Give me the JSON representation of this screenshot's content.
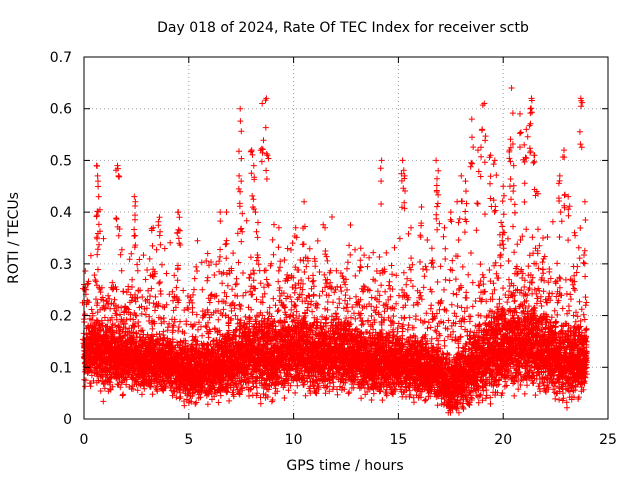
{
  "chart_data": {
    "type": "scatter",
    "title": "Day 018 of 2024, Rate Of TEC Index for receiver sctb",
    "xlabel": "GPS time / hours",
    "ylabel": "ROTI / TECUs",
    "xlim": [
      0,
      25
    ],
    "ylim": [
      0,
      0.7
    ],
    "x_ticks": [
      0,
      5,
      10,
      15,
      20,
      25
    ],
    "x_tick_labels": [
      "0",
      "5",
      "10",
      "15",
      "20",
      "25"
    ],
    "y_ticks": [
      0,
      0.1,
      0.2,
      0.3,
      0.4,
      0.5,
      0.6,
      0.7
    ],
    "y_tick_labels": [
      "0",
      "0.1",
      "0.2",
      "0.3",
      "0.4",
      "0.5",
      "0.6",
      "0.7"
    ],
    "grid": true,
    "marker": "+",
    "series_color": "#ff0000",
    "sample_interval_hours": 0.01,
    "observed_range_hours": [
      0,
      24
    ],
    "mean_envelope": [
      [
        0,
        0.11
      ],
      [
        0.5,
        0.14
      ],
      [
        1,
        0.12
      ],
      [
        2,
        0.12
      ],
      [
        3,
        0.11
      ],
      [
        4,
        0.11
      ],
      [
        5,
        0.09
      ],
      [
        6,
        0.1
      ],
      [
        7,
        0.11
      ],
      [
        8,
        0.13
      ],
      [
        9,
        0.12
      ],
      [
        10,
        0.14
      ],
      [
        11,
        0.12
      ],
      [
        12,
        0.13
      ],
      [
        13,
        0.12
      ],
      [
        14,
        0.11
      ],
      [
        15,
        0.11
      ],
      [
        16,
        0.1
      ],
      [
        17,
        0.09
      ],
      [
        17.5,
        0.06
      ],
      [
        18,
        0.08
      ],
      [
        19,
        0.12
      ],
      [
        20,
        0.14
      ],
      [
        21,
        0.15
      ],
      [
        22,
        0.13
      ],
      [
        23,
        0.11
      ],
      [
        24,
        0.12
      ]
    ],
    "spread_envelope": [
      [
        0,
        0.05
      ],
      [
        1,
        0.06
      ],
      [
        3,
        0.05
      ],
      [
        5,
        0.05
      ],
      [
        7,
        0.06
      ],
      [
        8,
        0.07
      ],
      [
        10,
        0.07
      ],
      [
        12,
        0.06
      ],
      [
        14,
        0.06
      ],
      [
        16,
        0.05
      ],
      [
        17.5,
        0.05
      ],
      [
        19,
        0.07
      ],
      [
        21,
        0.08
      ],
      [
        22,
        0.07
      ],
      [
        24,
        0.06
      ]
    ],
    "peaks": [
      [
        0.0,
        0.26
      ],
      [
        0.1,
        0.25
      ],
      [
        0.6,
        0.49
      ],
      [
        0.65,
        0.47
      ],
      [
        0.7,
        0.43
      ],
      [
        1.6,
        0.49
      ],
      [
        1.65,
        0.47
      ],
      [
        2.4,
        0.43
      ],
      [
        2.45,
        0.42
      ],
      [
        3.6,
        0.39
      ],
      [
        3.3,
        0.37
      ],
      [
        4.5,
        0.4
      ],
      [
        4.55,
        0.39
      ],
      [
        5.2,
        0.24
      ],
      [
        5.9,
        0.32
      ],
      [
        6.5,
        0.4
      ],
      [
        6.8,
        0.4
      ],
      [
        7.4,
        0.47
      ],
      [
        7.5,
        0.46
      ],
      [
        7.45,
        0.6
      ],
      [
        8.0,
        0.52
      ],
      [
        8.3,
        0.38
      ],
      [
        8.5,
        0.61
      ],
      [
        8.7,
        0.62
      ],
      [
        8.75,
        0.51
      ],
      [
        8.1,
        0.49
      ],
      [
        9.3,
        0.37
      ],
      [
        10.1,
        0.37
      ],
      [
        10.5,
        0.42
      ],
      [
        11.0,
        0.31
      ],
      [
        11.5,
        0.37
      ],
      [
        12.0,
        0.25
      ],
      [
        12.5,
        0.27
      ],
      [
        13.2,
        0.33
      ],
      [
        13.8,
        0.27
      ],
      [
        14.2,
        0.5
      ],
      [
        14.7,
        0.28
      ],
      [
        15.2,
        0.5
      ],
      [
        15.3,
        0.47
      ],
      [
        15.6,
        0.37
      ],
      [
        16.1,
        0.41
      ],
      [
        16.6,
        0.33
      ],
      [
        16.8,
        0.5
      ],
      [
        16.9,
        0.48
      ],
      [
        17.2,
        0.37
      ],
      [
        17.5,
        0.4
      ],
      [
        17.8,
        0.42
      ],
      [
        18.0,
        0.47
      ],
      [
        18.2,
        0.46
      ],
      [
        18.5,
        0.58
      ],
      [
        18.8,
        0.52
      ],
      [
        19.0,
        0.56
      ],
      [
        19.1,
        0.61
      ],
      [
        19.4,
        0.51
      ],
      [
        19.6,
        0.5
      ],
      [
        19.9,
        0.38
      ],
      [
        20.0,
        0.45
      ],
      [
        20.3,
        0.52
      ],
      [
        20.4,
        0.64
      ],
      [
        20.5,
        0.49
      ],
      [
        20.8,
        0.59
      ],
      [
        21.0,
        0.53
      ],
      [
        21.1,
        0.56
      ],
      [
        21.3,
        0.6
      ],
      [
        21.35,
        0.62
      ],
      [
        21.5,
        0.51
      ],
      [
        21.6,
        0.44
      ],
      [
        21.9,
        0.35
      ],
      [
        22.2,
        0.29
      ],
      [
        22.7,
        0.47
      ],
      [
        22.9,
        0.52
      ],
      [
        23.1,
        0.43
      ],
      [
        23.4,
        0.36
      ],
      [
        23.7,
        0.62
      ],
      [
        23.9,
        0.42
      ]
    ]
  }
}
